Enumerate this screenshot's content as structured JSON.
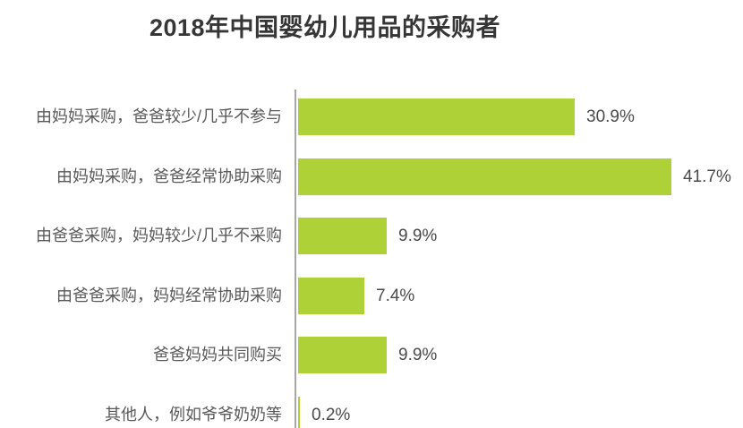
{
  "title": "2018年中国婴幼儿用品的采购者",
  "colors": {
    "bar": "#aed138",
    "axis": "#a6a6a6",
    "title_text": "#363636",
    "category_text": "#595959",
    "value_text": "#4a4a4a",
    "background": "#ffffff"
  },
  "chart_data": {
    "type": "bar",
    "orientation": "horizontal",
    "title": "2018年中国婴幼儿用品的采购者",
    "categories": [
      "由妈妈采购，爸爸较少/几乎不参与",
      "由妈妈采购，爸爸经常协助采购",
      "由爸爸采购，妈妈较少/几乎不采购",
      "由爸爸采购，妈妈经常协助采购",
      "爸爸妈妈共同购买",
      "其他人，例如爷爷奶奶等"
    ],
    "values": [
      30.9,
      41.7,
      9.9,
      7.4,
      9.9,
      0.2
    ],
    "value_labels": [
      "30.9%",
      "41.7%",
      "9.9%",
      "7.4%",
      "9.9%",
      "0.2%"
    ],
    "unit": "%",
    "xlim": [
      0,
      49.7
    ],
    "xlabel": "",
    "ylabel": "",
    "grid": false,
    "legend": false,
    "value_labels_position": "right-of-bar"
  }
}
